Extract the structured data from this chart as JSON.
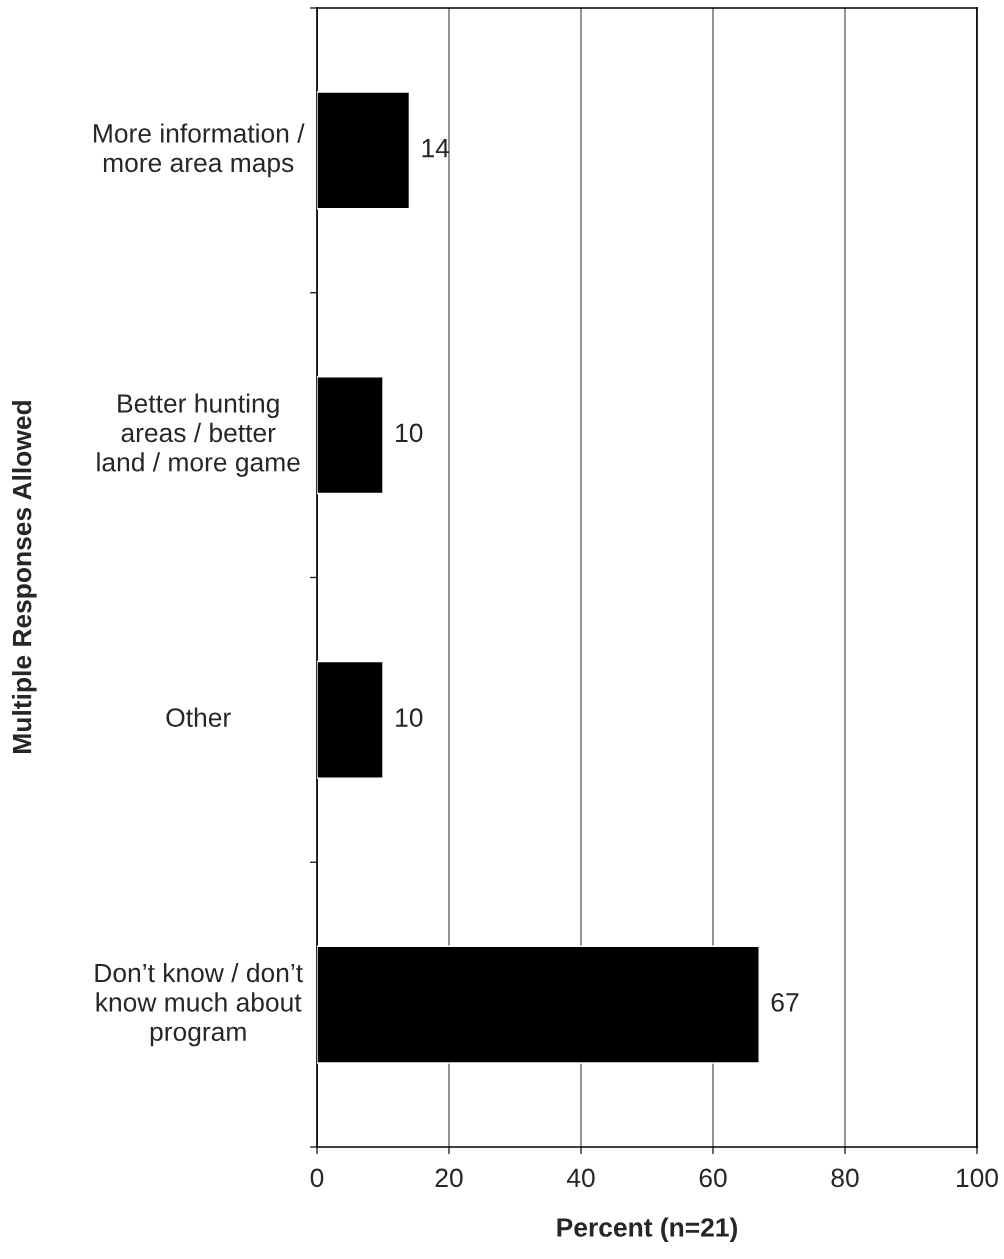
{
  "chart_data": {
    "type": "bar",
    "orientation": "horizontal",
    "categories": [
      "More information / more area maps",
      "Better hunting areas / better land / more game",
      "Other",
      "Don’t know / don’t know much about program"
    ],
    "values": [
      14,
      10,
      10,
      67
    ],
    "color": "#000000",
    "xlim": [
      0,
      100
    ],
    "xticks": [
      0,
      20,
      40,
      60,
      80,
      100
    ],
    "xlabel": "Percent (n=21)",
    "ylabel": "Multiple Responses Allowed",
    "grid": "x",
    "data_labels": true
  }
}
